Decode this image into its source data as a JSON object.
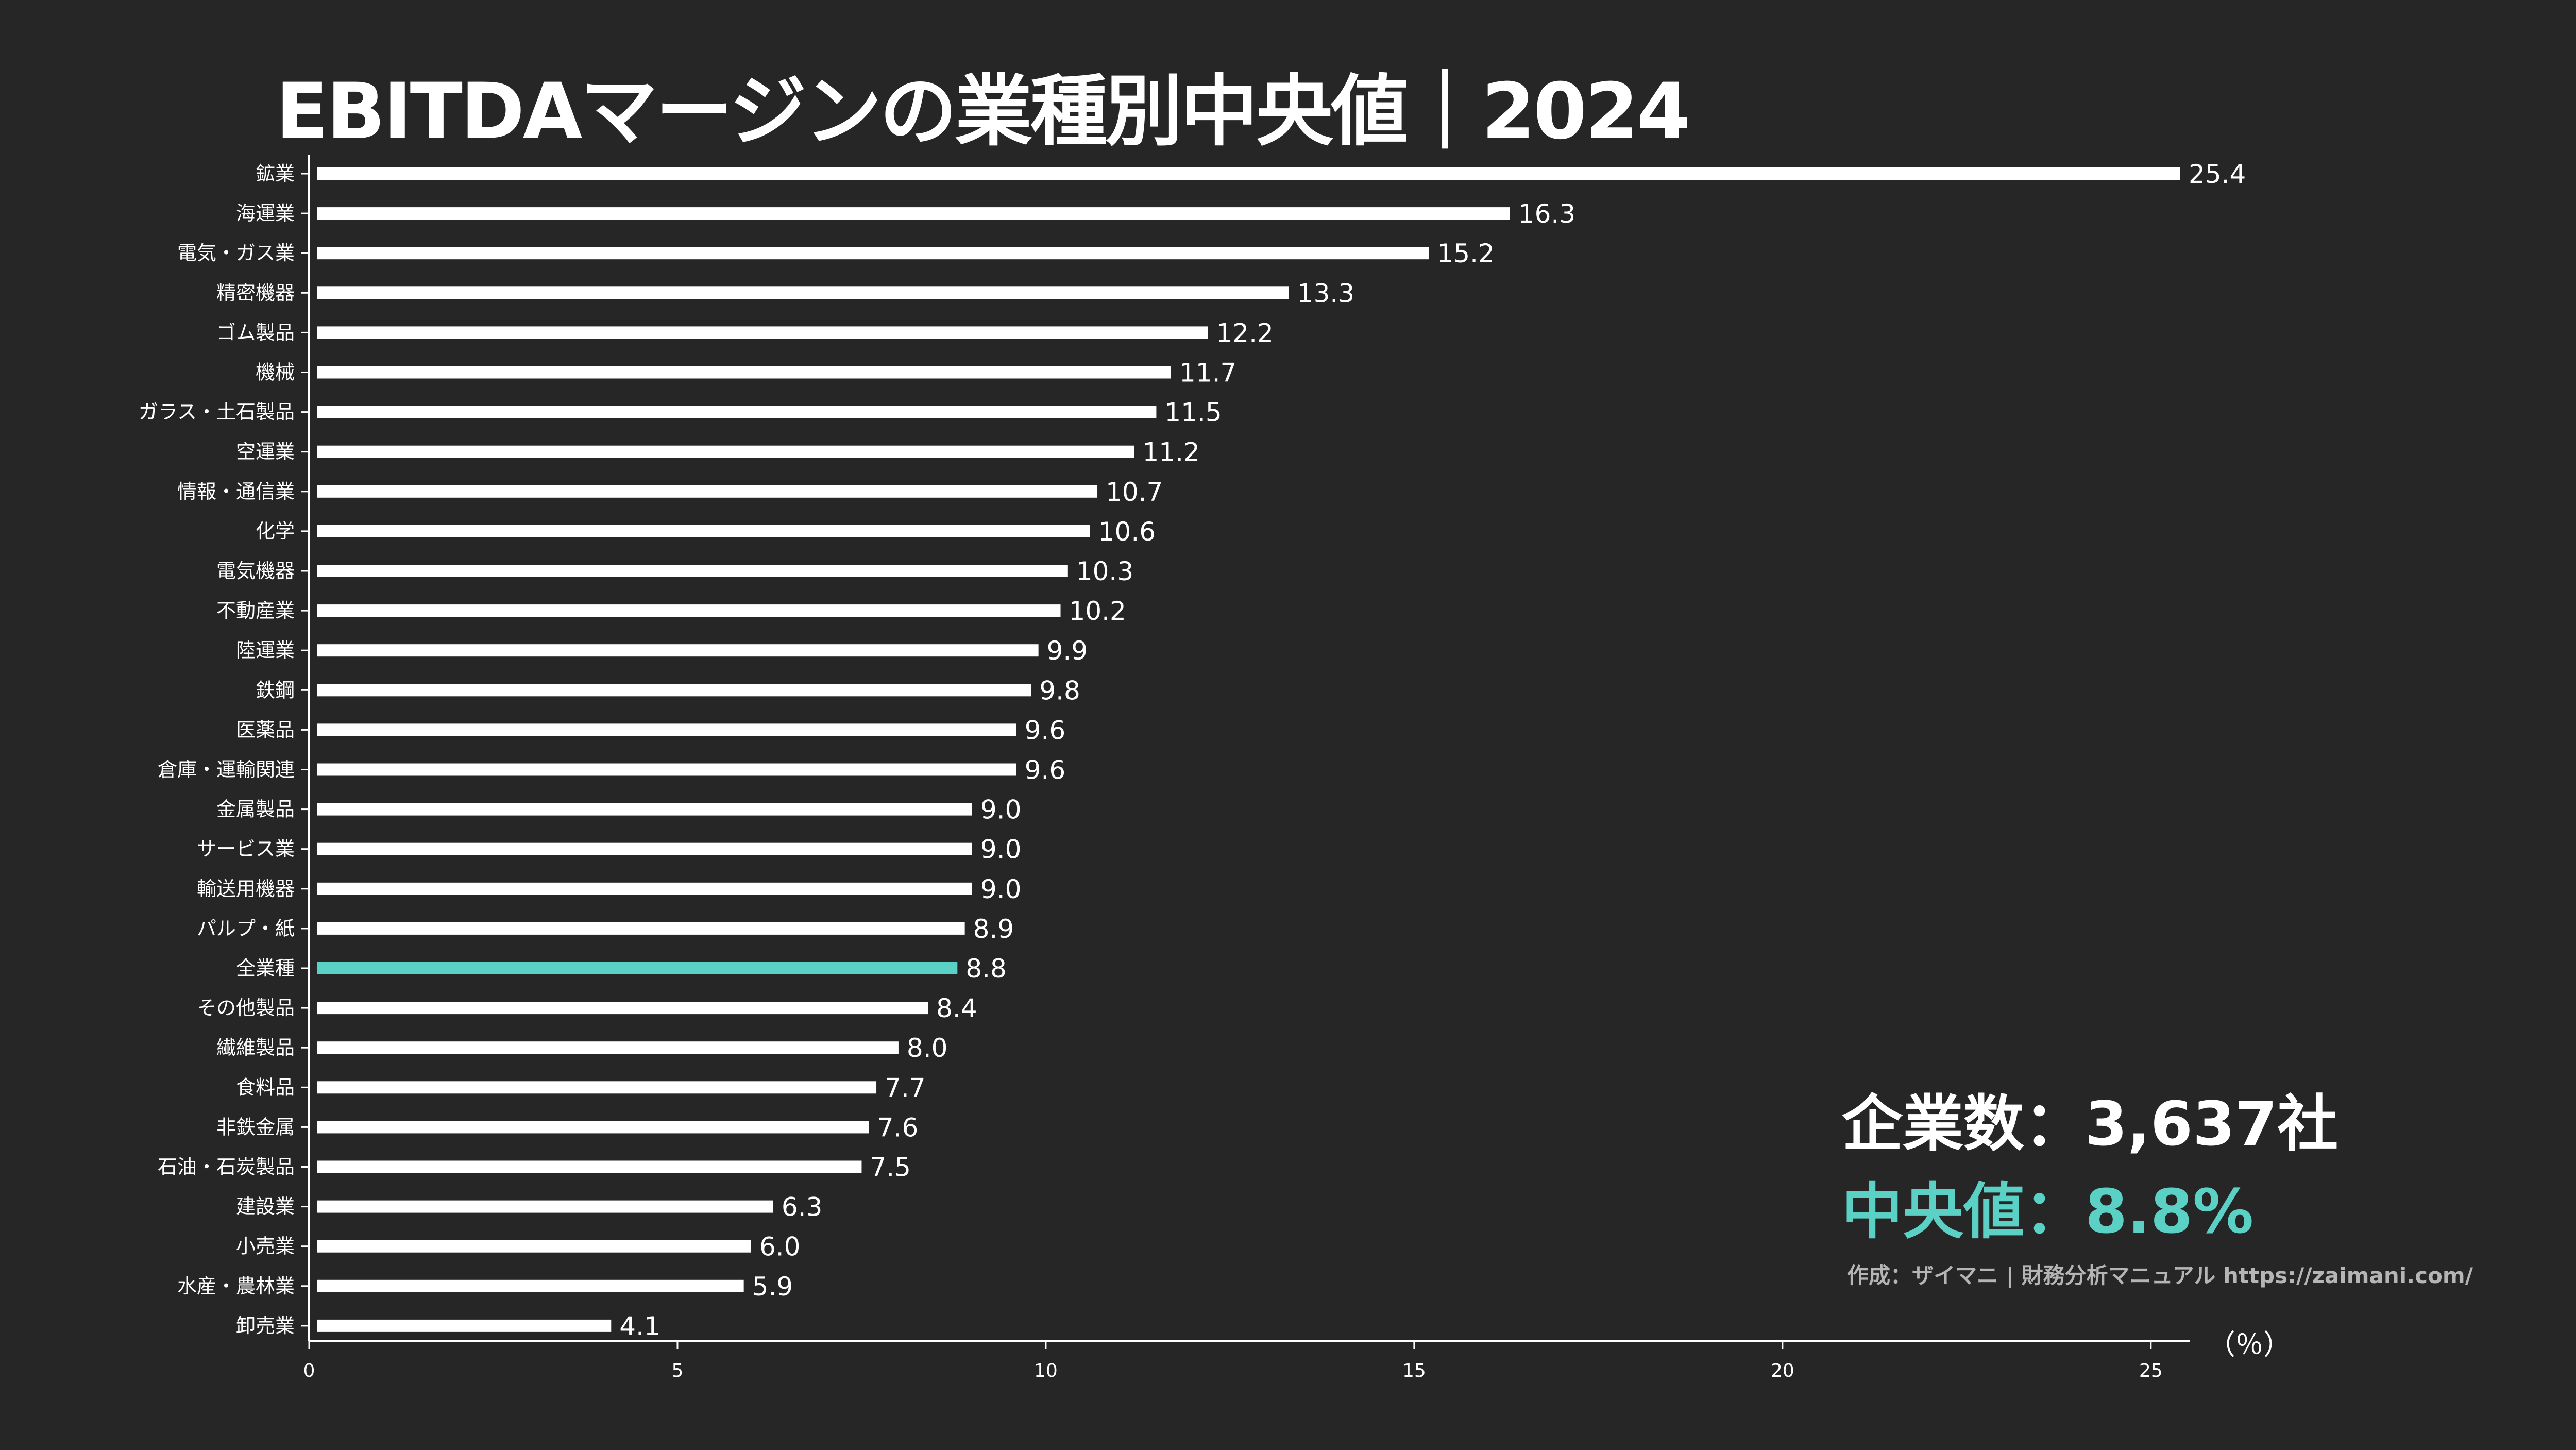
{
  "title": "EBITDAマージンの業種別中央値｜2024",
  "stats": {
    "count_label": "企業数：3,637社",
    "median_label": "中央値：8.8%"
  },
  "credit": "作成：ザイマニ | 財務分析マニュアル https://zaimani.com/",
  "axis_unit": "（％）",
  "colors": {
    "background": "#262626",
    "bar": "#ffffff",
    "highlight": "#5bd1c5",
    "text": "#ffffff",
    "credit": "#b5b5b5"
  },
  "chart_data": {
    "type": "bar",
    "orientation": "horizontal",
    "title": "EBITDAマージンの業種別中央値｜2024",
    "xlabel": "（％）",
    "ylabel": "",
    "xlim": [
      0,
      25.4
    ],
    "xticks": [
      0,
      5,
      10,
      15,
      20,
      25
    ],
    "highlight_category": "全業種",
    "categories": [
      "鉱業",
      "海運業",
      "電気・ガス業",
      "精密機器",
      "ゴム製品",
      "機械",
      "ガラス・土石製品",
      "空運業",
      "情報・通信業",
      "化学",
      "電気機器",
      "不動産業",
      "陸運業",
      "鉄鋼",
      "医薬品",
      "倉庫・運輸関連",
      "金属製品",
      "サービス業",
      "輸送用機器",
      "パルプ・紙",
      "全業種",
      "その他製品",
      "繊維製品",
      "食料品",
      "非鉄金属",
      "石油・石炭製品",
      "建設業",
      "小売業",
      "水産・農林業",
      "卸売業"
    ],
    "values": [
      25.4,
      16.3,
      15.2,
      13.3,
      12.2,
      11.7,
      11.5,
      11.2,
      10.7,
      10.6,
      10.3,
      10.2,
      9.9,
      9.8,
      9.6,
      9.6,
      9.0,
      9.0,
      9.0,
      8.9,
      8.8,
      8.4,
      8.0,
      7.7,
      7.6,
      7.5,
      6.3,
      6.0,
      5.9,
      4.1
    ],
    "value_labels": [
      "25.4",
      "16.3",
      "15.2",
      "13.3",
      "12.2",
      "11.7",
      "11.5",
      "11.2",
      "10.7",
      "10.6",
      "10.3",
      "10.2",
      "9.9",
      "9.8",
      "9.6",
      "9.6",
      "9.0",
      "9.0",
      "9.0",
      "8.9",
      "8.8",
      "8.4",
      "8.0",
      "7.7",
      "7.6",
      "7.5",
      "6.3",
      "6.0",
      "5.9",
      "4.1"
    ],
    "grid": false,
    "legend": "none"
  }
}
